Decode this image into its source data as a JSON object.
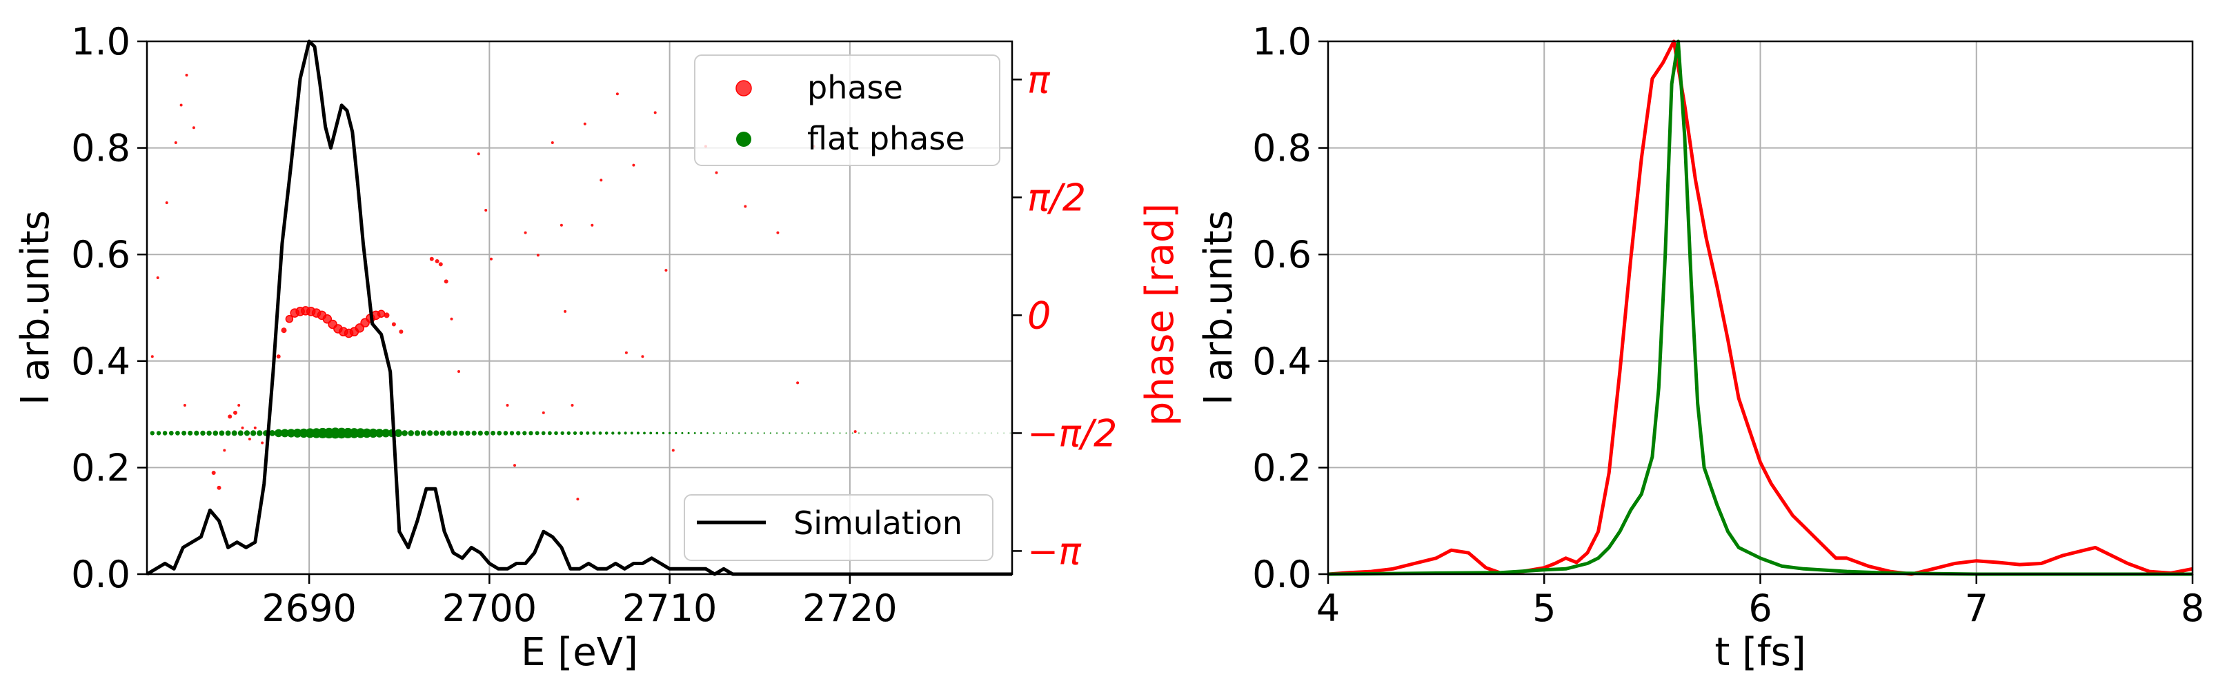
{
  "chart_data": [
    {
      "type": "line",
      "panel": "left",
      "xlabel": "E [eV]",
      "ylabel": "I arb.units",
      "y2label": "phase [rad]",
      "xlim": [
        2681,
        2729
      ],
      "ylim": [
        0,
        1.0
      ],
      "y2lim": [
        -3.45,
        3.65
      ],
      "xticks": [
        2690,
        2700,
        2710,
        2720
      ],
      "xtick_labels": [
        "2690",
        "2700",
        "2710",
        "2720"
      ],
      "yticks": [
        0.0,
        0.2,
        0.4,
        0.6,
        0.8,
        1.0
      ],
      "ytick_labels": [
        "0.0",
        "0.2",
        "0.4",
        "0.6",
        "0.8",
        "1.0"
      ],
      "y2ticks": [
        3.1416,
        1.5708,
        0,
        -1.5708,
        -3.1416
      ],
      "y2tick_labels": [
        "π",
        "π/2",
        "0",
        "−π/2",
        "−π"
      ],
      "grid": true,
      "colors": {
        "simulation": "#000000",
        "phase": "#ff0000",
        "flat_phase": "#008000",
        "axis2": "#ff0000"
      },
      "legend_lines": [
        {
          "label": "Simulation",
          "placement": "lower-right"
        }
      ],
      "legend_points": [
        {
          "label": "phase",
          "placement": "upper-right"
        },
        {
          "label": "flat phase",
          "placement": "upper-right"
        }
      ],
      "series": [
        {
          "name": "Simulation",
          "x": [
            2681,
            2682,
            2682.5,
            2683,
            2683.5,
            2684,
            2684.5,
            2685,
            2685.5,
            2686,
            2686.5,
            2687,
            2687.5,
            2688,
            2688.5,
            2689,
            2689.5,
            2690,
            2690.3,
            2690.6,
            2690.9,
            2691.2,
            2691.5,
            2691.8,
            2692.1,
            2692.4,
            2692.7,
            2693,
            2693.5,
            2694,
            2694.5,
            2695,
            2695.5,
            2696,
            2696.5,
            2697,
            2697.5,
            2698,
            2698.5,
            2699,
            2699.5,
            2700,
            2700.5,
            2701,
            2701.5,
            2702,
            2702.5,
            2703,
            2703.5,
            2704,
            2704.5,
            2705,
            2705.5,
            2706,
            2706.5,
            2707,
            2707.5,
            2708,
            2708.5,
            2709,
            2709.5,
            2710,
            2710.5,
            2711,
            2711.5,
            2712,
            2712.5,
            2713,
            2713.5,
            2714,
            2715,
            2716,
            2718,
            2720,
            2722,
            2724,
            2726,
            2729
          ],
          "values": [
            0.0,
            0.02,
            0.01,
            0.05,
            0.06,
            0.07,
            0.12,
            0.1,
            0.05,
            0.06,
            0.05,
            0.06,
            0.17,
            0.38,
            0.62,
            0.77,
            0.93,
            1.0,
            0.99,
            0.92,
            0.84,
            0.8,
            0.84,
            0.88,
            0.87,
            0.83,
            0.73,
            0.62,
            0.47,
            0.45,
            0.38,
            0.08,
            0.05,
            0.1,
            0.16,
            0.16,
            0.08,
            0.04,
            0.03,
            0.05,
            0.04,
            0.02,
            0.01,
            0.01,
            0.02,
            0.02,
            0.04,
            0.08,
            0.07,
            0.05,
            0.01,
            0.01,
            0.02,
            0.01,
            0.01,
            0.02,
            0.01,
            0.02,
            0.02,
            0.03,
            0.02,
            0.01,
            0.01,
            0.01,
            0.01,
            0.01,
            0.0,
            0.01,
            0.0,
            0.0,
            0.0,
            0.0,
            0.0,
            0.0,
            0.0,
            0.0,
            0.0,
            0.0
          ]
        },
        {
          "name": "phase",
          "type": "scatter",
          "points": [
            [
              2688.3,
              -0.55,
              3
            ],
            [
              2688.6,
              -0.2,
              4
            ],
            [
              2688.9,
              -0.05,
              5
            ],
            [
              2689.2,
              0.03,
              6
            ],
            [
              2689.5,
              0.05,
              6
            ],
            [
              2689.8,
              0.06,
              6
            ],
            [
              2690.1,
              0.05,
              6
            ],
            [
              2690.4,
              0.03,
              6
            ],
            [
              2690.7,
              0.0,
              6
            ],
            [
              2691.0,
              -0.05,
              6
            ],
            [
              2691.3,
              -0.12,
              6
            ],
            [
              2691.6,
              -0.18,
              6
            ],
            [
              2691.9,
              -0.22,
              6
            ],
            [
              2692.2,
              -0.24,
              6
            ],
            [
              2692.5,
              -0.22,
              6
            ],
            [
              2692.8,
              -0.17,
              6
            ],
            [
              2693.1,
              -0.1,
              6
            ],
            [
              2693.4,
              -0.04,
              6
            ],
            [
              2693.7,
              0.0,
              6
            ],
            [
              2694.0,
              0.02,
              5
            ],
            [
              2694.3,
              0.0,
              4
            ],
            [
              2694.7,
              -0.12,
              3
            ],
            [
              2695.1,
              -0.22,
              3
            ],
            [
              2681.3,
              -0.55,
              2
            ],
            [
              2681.6,
              0.5,
              2
            ],
            [
              2682.1,
              1.5,
              2
            ],
            [
              2682.6,
              2.3,
              2
            ],
            [
              2682.9,
              2.8,
              2
            ],
            [
              2683.2,
              3.2,
              2
            ],
            [
              2683.6,
              2.5,
              2
            ],
            [
              2683.1,
              -1.2,
              2
            ],
            [
              2684.5,
              -2.6,
              2
            ],
            [
              2684.7,
              -2.1,
              3
            ],
            [
              2685.0,
              -2.3,
              3
            ],
            [
              2685.3,
              -1.8,
              2
            ],
            [
              2685.6,
              -1.35,
              3
            ],
            [
              2685.9,
              -1.3,
              3
            ],
            [
              2686.3,
              -1.5,
              2
            ],
            [
              2686.7,
              -1.65,
              2
            ],
            [
              2687.0,
              -1.5,
              2
            ],
            [
              2687.4,
              -1.7,
              2
            ],
            [
              2686.1,
              -1.2,
              2
            ],
            [
              2696.8,
              0.75,
              3
            ],
            [
              2697.1,
              0.72,
              3
            ],
            [
              2697.3,
              0.68,
              3
            ],
            [
              2697.6,
              0.45,
              3
            ],
            [
              2697.9,
              -0.05,
              2
            ],
            [
              2698.3,
              -0.75,
              2
            ],
            [
              2699.4,
              2.15,
              2
            ],
            [
              2699.8,
              1.4,
              2
            ],
            [
              2700.1,
              0.75,
              2
            ],
            [
              2701.0,
              -1.2,
              2
            ],
            [
              2701.4,
              -2.0,
              2
            ],
            [
              2702.0,
              1.1,
              2
            ],
            [
              2702.7,
              0.8,
              2
            ],
            [
              2703.0,
              -1.3,
              2
            ],
            [
              2703.5,
              2.3,
              2
            ],
            [
              2704.0,
              1.2,
              2
            ],
            [
              2704.2,
              0.05,
              2
            ],
            [
              2704.6,
              -1.2,
              2
            ],
            [
              2704.9,
              -2.45,
              2
            ],
            [
              2705.3,
              2.55,
              2
            ],
            [
              2705.7,
              1.2,
              2
            ],
            [
              2706.2,
              1.8,
              2
            ],
            [
              2707.1,
              2.95,
              2
            ],
            [
              2707.6,
              -0.5,
              2
            ],
            [
              2708.0,
              2.0,
              2
            ],
            [
              2708.5,
              -0.55,
              2
            ],
            [
              2709.2,
              2.7,
              2
            ],
            [
              2709.8,
              0.6,
              2
            ],
            [
              2710.2,
              -1.8,
              2
            ],
            [
              2712.0,
              2.25,
              2
            ],
            [
              2712.6,
              1.9,
              2
            ],
            [
              2714.2,
              1.45,
              2
            ],
            [
              2716.0,
              1.1,
              2
            ],
            [
              2717.1,
              -0.9,
              2
            ],
            [
              2718.0,
              2.25,
              2
            ],
            [
              2720.3,
              -1.55,
              2
            ]
          ]
        },
        {
          "name": "flat phase",
          "type": "scatter",
          "y_value": -1.5708,
          "x_start": 2681.3,
          "x_end": 2729,
          "x_step": 0.35
        }
      ]
    },
    {
      "type": "line",
      "panel": "right",
      "xlabel": "t [fs]",
      "ylabel": "I arb.units",
      "xlim": [
        4,
        8
      ],
      "ylim": [
        0,
        1.0
      ],
      "xticks": [
        4,
        5,
        6,
        7,
        8
      ],
      "xtick_labels": [
        "4",
        "5",
        "6",
        "7",
        "8"
      ],
      "yticks": [
        0.0,
        0.2,
        0.4,
        0.6,
        0.8,
        1.0
      ],
      "ytick_labels": [
        "0.0",
        "0.2",
        "0.4",
        "0.6",
        "0.8",
        "1.0"
      ],
      "grid": true,
      "series": [
        {
          "name": "red",
          "color": "#ff0000",
          "x": [
            4.0,
            4.1,
            4.2,
            4.3,
            4.4,
            4.5,
            4.57,
            4.65,
            4.73,
            4.8,
            4.9,
            5.0,
            5.05,
            5.1,
            5.15,
            5.2,
            5.25,
            5.3,
            5.35,
            5.4,
            5.45,
            5.5,
            5.55,
            5.6,
            5.65,
            5.7,
            5.75,
            5.8,
            5.85,
            5.9,
            5.95,
            6.0,
            6.05,
            6.1,
            6.15,
            6.2,
            6.25,
            6.3,
            6.35,
            6.4,
            6.5,
            6.6,
            6.7,
            6.8,
            6.9,
            7.0,
            7.1,
            7.2,
            7.3,
            7.4,
            7.5,
            7.55,
            7.6,
            7.7,
            7.8,
            7.9,
            8.0
          ],
          "values": [
            0.0,
            0.003,
            0.005,
            0.01,
            0.02,
            0.03,
            0.045,
            0.04,
            0.012,
            0.002,
            0.005,
            0.012,
            0.02,
            0.03,
            0.022,
            0.04,
            0.08,
            0.19,
            0.38,
            0.59,
            0.78,
            0.93,
            0.96,
            1.0,
            0.88,
            0.74,
            0.63,
            0.54,
            0.44,
            0.33,
            0.27,
            0.21,
            0.17,
            0.14,
            0.11,
            0.09,
            0.07,
            0.05,
            0.03,
            0.03,
            0.015,
            0.005,
            0.0,
            0.01,
            0.02,
            0.025,
            0.022,
            0.018,
            0.02,
            0.035,
            0.045,
            0.05,
            0.04,
            0.02,
            0.005,
            0.002,
            0.01
          ]
        },
        {
          "name": "green",
          "color": "#008000",
          "x": [
            4.0,
            4.5,
            4.8,
            5.0,
            5.1,
            5.15,
            5.2,
            5.25,
            5.3,
            5.35,
            5.4,
            5.45,
            5.5,
            5.53,
            5.56,
            5.59,
            5.62,
            5.65,
            5.68,
            5.71,
            5.74,
            5.8,
            5.85,
            5.9,
            6.0,
            6.1,
            6.2,
            6.4,
            6.6,
            7.0,
            7.5,
            8.0
          ],
          "values": [
            0.0,
            0.002,
            0.003,
            0.008,
            0.01,
            0.015,
            0.02,
            0.03,
            0.05,
            0.08,
            0.12,
            0.15,
            0.22,
            0.35,
            0.6,
            0.92,
            1.0,
            0.82,
            0.55,
            0.32,
            0.2,
            0.13,
            0.08,
            0.05,
            0.03,
            0.015,
            0.01,
            0.005,
            0.002,
            0.0,
            0.0,
            0.0
          ]
        }
      ]
    }
  ]
}
